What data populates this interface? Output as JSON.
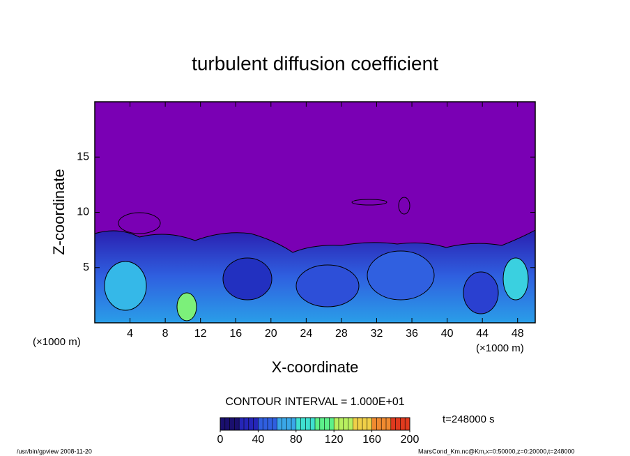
{
  "chart_data": {
    "type": "contour",
    "title": "turbulent diffusion coefficient",
    "xlabel": "X-coordinate",
    "ylabel": "Z-coordinate",
    "x_unit": "(×1000 m)",
    "xlim": [
      0,
      50
    ],
    "xticks": [
      4,
      8,
      12,
      16,
      20,
      24,
      28,
      32,
      36,
      40,
      44,
      48
    ],
    "ylim": [
      0,
      20
    ],
    "yticks": [
      5,
      10,
      15
    ],
    "contour_interval": "CONTOUR INTERVAL = 1.000E+01",
    "time_label": "t=248000 s",
    "colorbar": {
      "lim": [
        0,
        200
      ],
      "ticks": [
        0,
        40,
        80,
        120,
        160,
        200
      ],
      "colors": [
        "#1a0f6e",
        "#2525b8",
        "#2f5fe0",
        "#3aa7e8",
        "#3fe0d0",
        "#5cf08a",
        "#b8f060",
        "#f0d048",
        "#f08a30",
        "#e03a1e"
      ]
    },
    "footer_left": "/usr/bin/gpview   2008-11-20",
    "footer_right": "MarsCond_Km.nc@Km,x=0:50000,z=0:20000,t=248000"
  }
}
